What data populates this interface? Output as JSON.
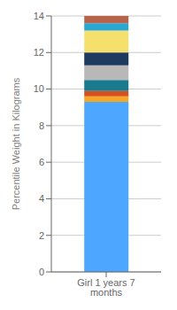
{
  "chart_data": {
    "type": "bar",
    "stacked": true,
    "categories": [
      "Girl 1 years 7 months"
    ],
    "series": [
      {
        "color": "#4DA6FF",
        "values": [
          9.3
        ]
      },
      {
        "color": "#F5A623",
        "values": [
          0.3
        ]
      },
      {
        "color": "#D94E1F",
        "values": [
          0.3
        ]
      },
      {
        "color": "#1A7A8E",
        "values": [
          0.6
        ]
      },
      {
        "color": "#B8B8B8",
        "values": [
          0.8
        ]
      },
      {
        "color": "#1F3A5F",
        "values": [
          0.7
        ]
      },
      {
        "color": "#F5E06E",
        "values": [
          1.2
        ]
      },
      {
        "color": "#29A8D4",
        "values": [
          0.4
        ]
      },
      {
        "color": "#B8644A",
        "values": [
          0.4
        ]
      }
    ],
    "ylabel": "Percentile Weight in Kilograms",
    "ylim": [
      0,
      14
    ],
    "yticks": [
      0,
      2,
      4,
      6,
      8,
      10,
      12,
      14
    ],
    "grid": true
  }
}
